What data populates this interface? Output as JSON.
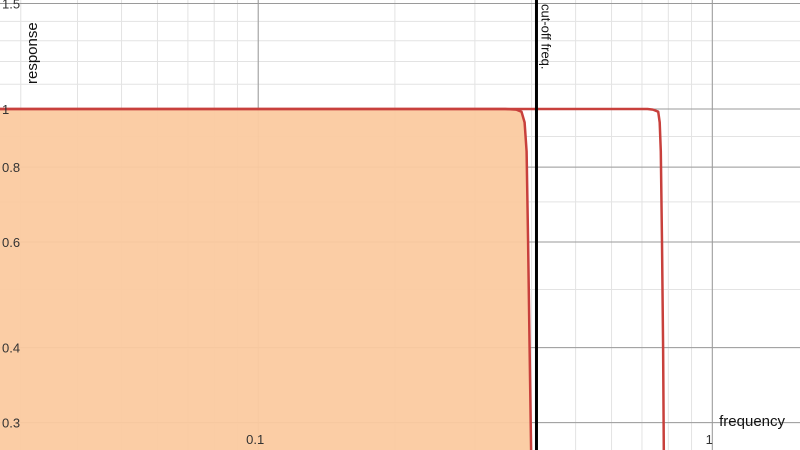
{
  "chart_data": {
    "type": "area",
    "xlabel": "frequency",
    "ylabel": "response",
    "xscale": "log",
    "yscale": "log",
    "xlim": [
      0.027,
      1.56
    ],
    "ylim": [
      0.27,
      1.52
    ],
    "x_ticks": [
      {
        "value": 0.1,
        "label": "0.1"
      },
      {
        "value": 1,
        "label": "1"
      }
    ],
    "y_ticks": [
      {
        "value": 0.3,
        "label": "0.3"
      },
      {
        "value": 0.4,
        "label": "0.4"
      },
      {
        "value": 0.6,
        "label": "0.6"
      },
      {
        "value": 0.8,
        "label": "0.8"
      },
      {
        "value": 1,
        "label": "1"
      },
      {
        "value": 1.5,
        "label": "1.5"
      }
    ],
    "grid": true,
    "cutoff": {
      "x": 0.41,
      "label": "cut-off freq."
    },
    "series": [
      {
        "color": "#c8403c",
        "filled": true,
        "fill_color": "#fbcaa0",
        "points": [
          [
            0.027,
            1.0
          ],
          [
            0.1,
            1.0
          ],
          [
            0.2,
            1.0
          ],
          [
            0.35,
            1.0
          ],
          [
            0.37,
            0.998
          ],
          [
            0.38,
            0.99
          ],
          [
            0.386,
            0.95
          ],
          [
            0.39,
            0.85
          ],
          [
            0.393,
            0.6
          ],
          [
            0.396,
            0.4
          ],
          [
            0.399,
            0.27
          ]
        ]
      },
      {
        "color": "#c8403c",
        "filled": false,
        "points": [
          [
            0.027,
            1.0
          ],
          [
            0.1,
            1.0
          ],
          [
            0.3,
            1.0
          ],
          [
            0.6,
            1.0
          ],
          [
            0.72,
            1.0
          ],
          [
            0.74,
            0.998
          ],
          [
            0.76,
            0.99
          ],
          [
            0.766,
            0.95
          ],
          [
            0.77,
            0.85
          ],
          [
            0.775,
            0.6
          ],
          [
            0.779,
            0.4
          ],
          [
            0.782,
            0.27
          ]
        ]
      }
    ]
  }
}
